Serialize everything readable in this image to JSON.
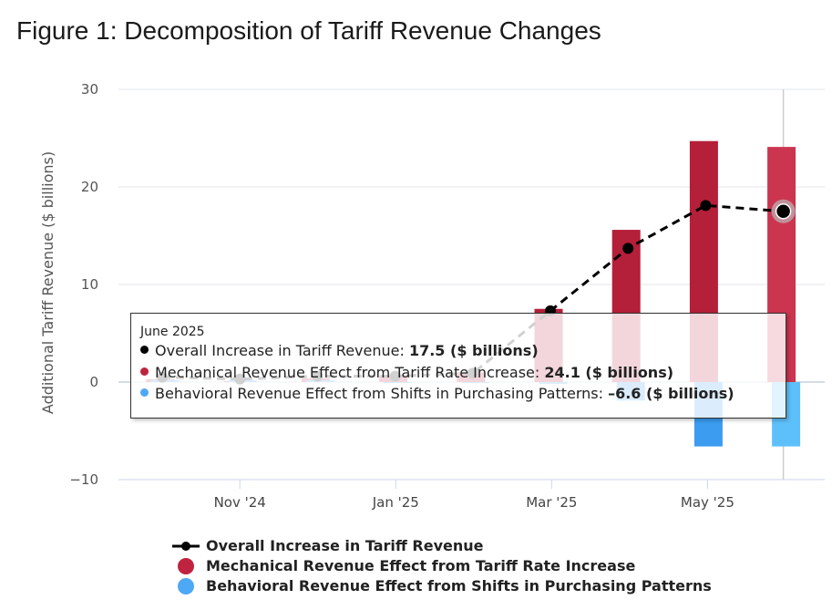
{
  "title": "Figure 1: Decomposition of Tariff Revenue Changes",
  "chart_data": {
    "type": "bar",
    "title": "Figure 1: Decomposition of Tariff Revenue Changes",
    "xlabel": "",
    "ylabel": "Additional Tariff Revenue ($ billions)",
    "ylim": [
      -10,
      30
    ],
    "yticks": [
      -10,
      0,
      10,
      20,
      30
    ],
    "ytick_labels": [
      "−10",
      "0",
      "10",
      "20",
      "30"
    ],
    "xtick_labels": [
      "Nov '24",
      "Jan '25",
      "Mar '25",
      "May '25"
    ],
    "categories": [
      "Oct 2024",
      "Nov 2024",
      "Dec 2024",
      "Jan 2025",
      "Feb 2025",
      "Mar 2025",
      "Apr 2025",
      "May 2025",
      "Jun 2025"
    ],
    "series": [
      {
        "name": "Overall Increase in Tariff Revenue",
        "kind": "line",
        "color": "#000000",
        "values": [
          0.5,
          0.3,
          0.6,
          0.6,
          0.9,
          7.3,
          13.7,
          18.1,
          17.5
        ]
      },
      {
        "name": "Mechanical Revenue Effect from Tariff Rate Increase",
        "kind": "bar",
        "color": "#c0233f",
        "values": [
          0.3,
          0.1,
          0.4,
          0.7,
          1.0,
          7.5,
          15.6,
          24.7,
          24.1
        ]
      },
      {
        "name": "Behavioral Revenue Effect from Shifts in Purchasing Patterns",
        "kind": "bar",
        "color": "#4da8f5",
        "values": [
          0.2,
          0.2,
          0.2,
          -0.1,
          -0.1,
          -0.2,
          -1.9,
          -6.6,
          -6.6
        ]
      }
    ],
    "highlighted_category": "Jun 2025"
  },
  "tooltip": {
    "date": "June 2025",
    "rows": [
      {
        "label": "Overall Increase in Tariff Revenue: ",
        "value": "17.5 ($ billions)",
        "color": "#000000"
      },
      {
        "label": "Mechanical Revenue Effect from Tariff Rate Increase: ",
        "value": "24.1 ($ billions)",
        "color": "#c0233f"
      },
      {
        "label": "Behavioral Revenue Effect from Shifts in Purchasing Patterns: ",
        "value": "–6.6 ($ billions)",
        "color": "#4da8f5"
      }
    ]
  },
  "legend": [
    {
      "label": "Overall Increase in Tariff Revenue",
      "symbol": "line-dot",
      "color": "#000000"
    },
    {
      "label": "Mechanical Revenue Effect from Tariff Rate Increase",
      "symbol": "circle",
      "color": "#c0233f"
    },
    {
      "label": "Behavioral Revenue Effect from Shifts in Purchasing Patterns",
      "symbol": "circle",
      "color": "#4da8f5"
    }
  ]
}
